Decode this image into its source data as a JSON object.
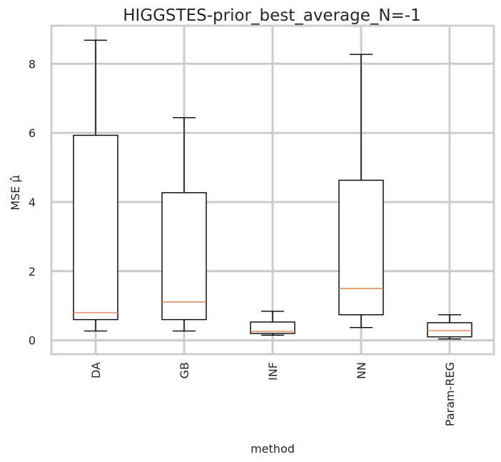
{
  "chart_data": {
    "type": "box",
    "title": "HIGGSTES-prior_best_average_N=-1",
    "xlabel": "method",
    "ylabel": "MSE μ̂",
    "ylim": [
      -0.4,
      9.1
    ],
    "yticks": [
      0,
      2,
      4,
      6,
      8
    ],
    "grid": true,
    "categories": [
      "DA",
      "GB",
      "INF",
      "NN",
      "Param-REG"
    ],
    "boxes": [
      {
        "label": "DA",
        "whisker_low": 0.27,
        "q1": 0.6,
        "median": 0.8,
        "q3": 5.93,
        "whisker_high": 8.68
      },
      {
        "label": "GB",
        "whisker_low": 0.27,
        "q1": 0.6,
        "median": 1.11,
        "q3": 4.27,
        "whisker_high": 6.44
      },
      {
        "label": "INF",
        "whisker_low": 0.15,
        "q1": 0.2,
        "median": 0.26,
        "q3": 0.53,
        "whisker_high": 0.84
      },
      {
        "label": "NN",
        "whisker_low": 0.37,
        "q1": 0.74,
        "median": 1.5,
        "q3": 4.63,
        "whisker_high": 8.27
      },
      {
        "label": "Param-REG",
        "whisker_low": 0.04,
        "q1": 0.1,
        "median": 0.28,
        "q3": 0.51,
        "whisker_high": 0.74
      }
    ],
    "colors": {
      "box": "#000000",
      "median": "#dd8452",
      "grid": "#cccccc",
      "frame": "#cccccc"
    }
  }
}
